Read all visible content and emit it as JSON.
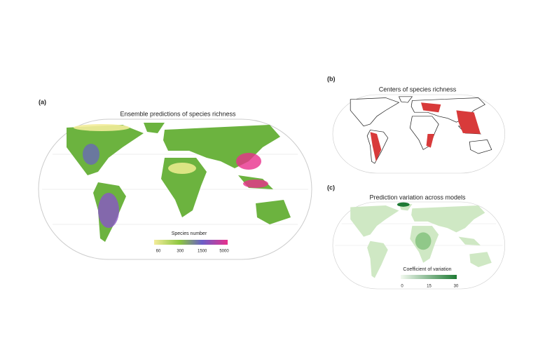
{
  "panels": [
    {
      "label": "(a)",
      "title": "Ensemble predictions of species richness",
      "legend": {
        "title": "Species number",
        "ticks": [
          60,
          300,
          1500,
          5000
        ]
      }
    },
    {
      "label": "(b)",
      "title": "Centers of species richness"
    },
    {
      "label": "(c)",
      "title": "Prediction variation across models",
      "legend": {
        "title": "Coefficient of variation",
        "ticks": [
          0,
          15,
          30
        ]
      }
    }
  ]
}
